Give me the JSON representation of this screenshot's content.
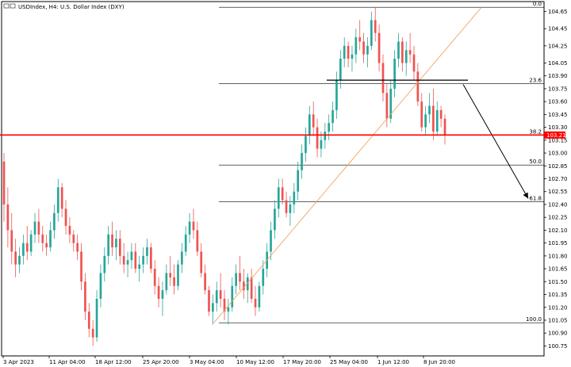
{
  "header": {
    "symbol_title": "USDIndex, H4:  U.S. Dollar Index (DXY)"
  },
  "chart_data": {
    "type": "candlestick",
    "title": "USDIndex, H4:  U.S. Dollar Index (DXY)",
    "xlabel": "",
    "ylabel": "",
    "ylim": [
      100.68,
      104.72
    ],
    "y_ticks": [
      "104.65",
      "104.45",
      "104.25",
      "104.05",
      "103.90",
      "103.75",
      "103.60",
      "103.45",
      "103.30",
      "103.15",
      "103.00",
      "102.85",
      "102.70",
      "102.55",
      "102.40",
      "102.25",
      "102.10",
      "101.95",
      "101.80",
      "101.65",
      "101.50",
      "101.35",
      "101.20",
      "101.05",
      "100.90",
      "100.75"
    ],
    "x_ticks": [
      "3 Apr 2023",
      "11 Apr 04:00",
      "18 Apr 12:00",
      "25 Apr 20:00",
      "3 May 04:00",
      "10 May 12:00",
      "17 May 20:00",
      "25 May 04:00",
      "1 Jun 12:00",
      "8 Jun 20:00"
    ],
    "current_price": {
      "label": "103.21",
      "value": 103.21,
      "color": "#ff0000"
    },
    "fibonacci": {
      "levels": [
        {
          "label": "0.0",
          "value": 104.7
        },
        {
          "label": "23.6",
          "value": 103.81
        },
        {
          "label": "38.2",
          "value": 103.21
        },
        {
          "label": "50.0",
          "value": 102.86
        },
        {
          "label": "61.8",
          "value": 102.43
        },
        {
          "label": "100.0",
          "value": 101.02
        }
      ],
      "line_color": "#000000"
    },
    "trendline": {
      "from": [
        "4 May",
        101.02
      ],
      "to": [
        "14 Jun",
        104.7
      ],
      "color": "#f4a460"
    },
    "resistance_line": {
      "from": [
        "29 May",
        103.85
      ],
      "to": [
        "12 Jun",
        103.85
      ]
    },
    "projection_arrow": {
      "from": [
        "12 Jun",
        103.8
      ],
      "to": [
        "18 Jun",
        102.47
      ]
    },
    "colors": {
      "up": "#26a69a",
      "down": "#ef5350",
      "axis": "#000000"
    },
    "series": [
      {
        "ohlc": [
          [
            102.9,
            103.0,
            102.2,
            102.4
          ],
          [
            102.4,
            102.6,
            101.9,
            102.1
          ],
          [
            102.1,
            102.3,
            101.7,
            101.85
          ],
          [
            101.85,
            102.0,
            101.55,
            101.7
          ],
          [
            101.7,
            101.9,
            101.6,
            101.8
          ],
          [
            101.8,
            102.05,
            101.7,
            101.95
          ],
          [
            101.95,
            102.15,
            101.75,
            101.85
          ],
          [
            101.85,
            102.1,
            101.8,
            102.05
          ],
          [
            102.05,
            102.3,
            101.95,
            102.2
          ],
          [
            102.2,
            102.35,
            101.95,
            102.05
          ],
          [
            102.05,
            102.15,
            101.85,
            101.95
          ],
          [
            101.95,
            102.05,
            101.8,
            101.9
          ],
          [
            101.9,
            102.2,
            101.85,
            102.1
          ],
          [
            102.1,
            102.4,
            102.0,
            102.3
          ],
          [
            102.3,
            102.7,
            102.2,
            102.6
          ],
          [
            102.6,
            102.65,
            102.25,
            102.35
          ],
          [
            102.35,
            102.45,
            102.05,
            102.15
          ],
          [
            102.15,
            102.25,
            101.95,
            102.05
          ],
          [
            102.05,
            102.1,
            101.85,
            101.95
          ],
          [
            101.95,
            102.05,
            101.75,
            101.85
          ],
          [
            101.85,
            101.95,
            101.4,
            101.5
          ],
          [
            101.5,
            101.6,
            101.05,
            101.15
          ],
          [
            101.15,
            101.25,
            100.85,
            100.95
          ],
          [
            100.95,
            101.05,
            100.75,
            100.85
          ],
          [
            100.85,
            101.4,
            100.8,
            101.3
          ],
          [
            101.3,
            101.7,
            101.2,
            101.6
          ],
          [
            101.6,
            101.9,
            101.5,
            101.8
          ],
          [
            101.8,
            102.15,
            101.7,
            102.05
          ],
          [
            102.05,
            102.2,
            101.8,
            101.9
          ],
          [
            101.9,
            102.1,
            101.75,
            102.0
          ],
          [
            102.0,
            102.1,
            101.7,
            101.8
          ],
          [
            101.8,
            101.95,
            101.6,
            101.7
          ],
          [
            101.7,
            101.85,
            101.55,
            101.75
          ],
          [
            101.75,
            101.95,
            101.65,
            101.85
          ],
          [
            101.85,
            101.95,
            101.6,
            101.65
          ],
          [
            101.65,
            101.8,
            101.5,
            101.7
          ],
          [
            101.7,
            101.9,
            101.6,
            101.8
          ],
          [
            101.8,
            102.0,
            101.7,
            101.9
          ],
          [
            101.9,
            101.95,
            101.6,
            101.65
          ],
          [
            101.65,
            101.75,
            101.35,
            101.45
          ],
          [
            101.45,
            101.55,
            101.2,
            101.3
          ],
          [
            101.3,
            101.5,
            101.1,
            101.4
          ],
          [
            101.4,
            101.7,
            101.35,
            101.6
          ],
          [
            101.6,
            101.8,
            101.45,
            101.55
          ],
          [
            101.55,
            101.7,
            101.35,
            101.45
          ],
          [
            101.45,
            101.75,
            101.4,
            101.7
          ],
          [
            101.7,
            101.95,
            101.6,
            101.85
          ],
          [
            101.85,
            102.15,
            101.8,
            102.05
          ],
          [
            102.05,
            102.3,
            101.95,
            102.2
          ],
          [
            102.2,
            102.35,
            102.0,
            102.1
          ],
          [
            102.1,
            102.2,
            101.8,
            101.85
          ],
          [
            101.85,
            101.95,
            101.55,
            101.6
          ],
          [
            101.6,
            101.7,
            101.35,
            101.4
          ],
          [
            101.4,
            101.45,
            101.1,
            101.15
          ],
          [
            101.15,
            101.35,
            101.0,
            101.25
          ],
          [
            101.25,
            101.5,
            101.15,
            101.4
          ],
          [
            101.4,
            101.6,
            101.2,
            101.3
          ],
          [
            101.3,
            101.4,
            101.05,
            101.15
          ],
          [
            101.15,
            101.3,
            101.0,
            101.2
          ],
          [
            101.2,
            101.55,
            101.15,
            101.45
          ],
          [
            101.45,
            101.7,
            101.35,
            101.6
          ],
          [
            101.6,
            101.8,
            101.4,
            101.5
          ],
          [
            101.5,
            101.65,
            101.3,
            101.4
          ],
          [
            101.4,
            101.6,
            101.25,
            101.55
          ],
          [
            101.55,
            101.65,
            101.25,
            101.3
          ],
          [
            101.3,
            101.45,
            101.1,
            101.2
          ],
          [
            101.2,
            101.5,
            101.15,
            101.45
          ],
          [
            101.45,
            101.75,
            101.35,
            101.65
          ],
          [
            101.65,
            101.95,
            101.55,
            101.85
          ],
          [
            101.85,
            102.2,
            101.75,
            102.1
          ],
          [
            102.1,
            102.45,
            102.0,
            102.35
          ],
          [
            102.35,
            102.7,
            102.25,
            102.6
          ],
          [
            102.6,
            102.7,
            102.4,
            102.45
          ],
          [
            102.45,
            102.55,
            102.25,
            102.3
          ],
          [
            102.3,
            102.5,
            102.15,
            102.4
          ],
          [
            102.4,
            102.65,
            102.3,
            102.55
          ],
          [
            102.55,
            102.9,
            102.45,
            102.8
          ],
          [
            102.8,
            103.1,
            102.7,
            103.0
          ],
          [
            103.0,
            103.3,
            102.9,
            103.2
          ],
          [
            103.2,
            103.55,
            103.1,
            103.45
          ],
          [
            103.45,
            103.6,
            103.2,
            103.3
          ],
          [
            103.3,
            103.4,
            102.95,
            103.05
          ],
          [
            103.05,
            103.25,
            102.95,
            103.15
          ],
          [
            103.15,
            103.35,
            103.05,
            103.25
          ],
          [
            103.25,
            103.45,
            103.15,
            103.35
          ],
          [
            103.35,
            103.6,
            103.25,
            103.5
          ],
          [
            103.5,
            103.95,
            103.4,
            103.85
          ],
          [
            103.85,
            104.2,
            103.75,
            104.1
          ],
          [
            104.1,
            104.35,
            104.0,
            104.25
          ],
          [
            104.25,
            104.3,
            104.0,
            104.1
          ],
          [
            104.1,
            104.25,
            103.95,
            104.15
          ],
          [
            104.15,
            104.45,
            104.05,
            104.35
          ],
          [
            104.35,
            104.55,
            104.2,
            104.3
          ],
          [
            104.3,
            104.4,
            104.05,
            104.15
          ],
          [
            104.15,
            104.35,
            104.0,
            104.25
          ],
          [
            104.25,
            104.65,
            104.2,
            104.55
          ],
          [
            104.55,
            104.7,
            104.3,
            104.4
          ],
          [
            104.4,
            104.5,
            103.95,
            104.05
          ],
          [
            104.05,
            104.15,
            103.6,
            103.7
          ],
          [
            103.7,
            103.8,
            103.3,
            103.4
          ],
          [
            103.4,
            103.85,
            103.35,
            103.75
          ],
          [
            103.75,
            104.2,
            103.65,
            104.1
          ],
          [
            104.1,
            104.4,
            104.0,
            104.3
          ],
          [
            104.3,
            104.35,
            103.95,
            104.05
          ],
          [
            104.05,
            104.3,
            103.9,
            104.2
          ],
          [
            104.2,
            104.4,
            104.05,
            104.15
          ],
          [
            104.15,
            104.25,
            103.85,
            103.95
          ],
          [
            103.95,
            104.05,
            103.55,
            103.6
          ],
          [
            103.6,
            103.7,
            103.25,
            103.3
          ],
          [
            103.3,
            103.55,
            103.2,
            103.45
          ],
          [
            103.45,
            103.7,
            103.35,
            103.55
          ],
          [
            103.55,
            103.75,
            103.15,
            103.25
          ],
          [
            103.25,
            103.6,
            103.2,
            103.5
          ],
          [
            103.5,
            103.55,
            103.3,
            103.4
          ],
          [
            103.4,
            103.45,
            103.1,
            103.21
          ]
        ]
      }
    ]
  }
}
